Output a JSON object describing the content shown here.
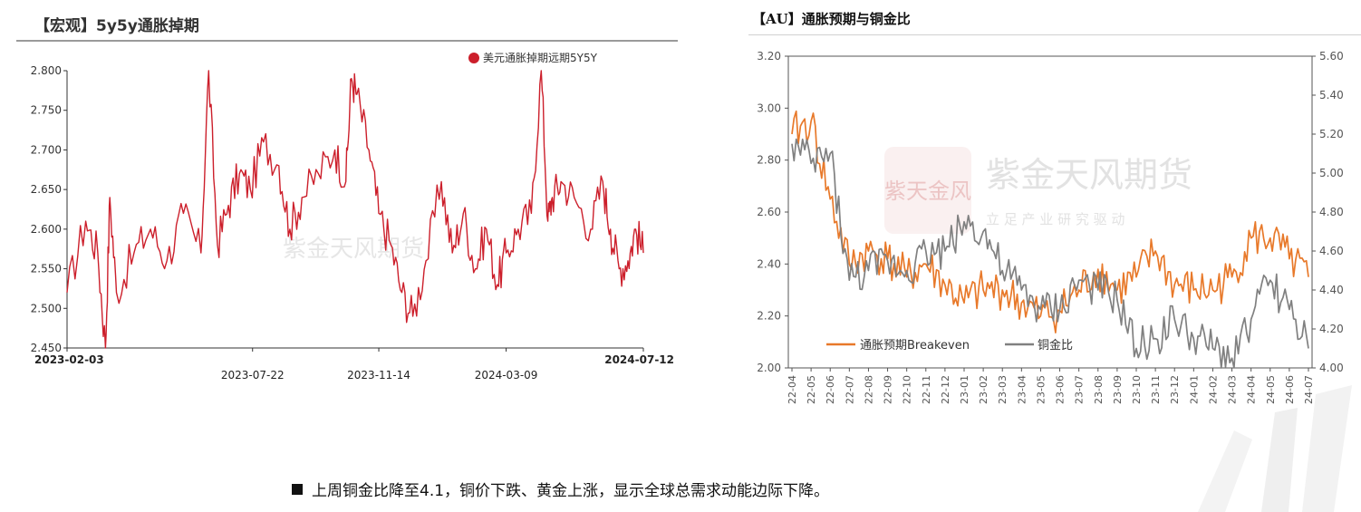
{
  "left": {
    "title": "【宏观】5y5y通胀掉期",
    "watermark": "紫金天风期货",
    "legend": "美元通胀掉期远期5Y5Y",
    "series_color": "#cc1f2b"
  },
  "right": {
    "title": "【AU】通胀预期与铜金比",
    "watermark": "紫金天风期货",
    "watermark_sub": "立 足 产 业   研 究 驱 动",
    "watermark_seal": "紫天金风",
    "legend_a": "通胀预期Breakeven",
    "legend_b": "铜金比",
    "color_a": "#e8792a",
    "color_b": "#808080"
  },
  "footer": {
    "text": "上周铜金比降至4.1，铜价下跌、黄金上涨，显示全球总需求动能边际下降。"
  },
  "chart_data": [
    {
      "type": "line",
      "title": "【宏观】5y5y通胀掉期",
      "xlabel": "",
      "ylabel": "",
      "x_range": [
        "2023-02-03",
        "2024-07-12"
      ],
      "x_ticks": [
        "2023-02-03",
        "2023-07-22",
        "2023-11-14",
        "2024-03-09",
        "2024-07-12"
      ],
      "ylim": [
        2.45,
        2.8
      ],
      "y_ticks": [
        "2.450",
        "2.500",
        "2.550",
        "2.600",
        "2.650",
        "2.700",
        "2.750",
        "2.800"
      ],
      "grid": false,
      "legend_position": "top-right",
      "series": [
        {
          "name": "美元通胀掉期远期5Y5Y",
          "x": [
            "2023-02-03",
            "2023-02-20",
            "2023-03-03",
            "2023-03-10",
            "2023-03-14",
            "2023-03-20",
            "2023-04-05",
            "2023-04-20",
            "2023-05-05",
            "2023-05-20",
            "2023-06-05",
            "2023-06-12",
            "2023-06-20",
            "2023-06-30",
            "2023-07-10",
            "2023-07-20",
            "2023-08-01",
            "2023-08-15",
            "2023-08-25",
            "2023-09-05",
            "2023-09-20",
            "2023-10-05",
            "2023-10-15",
            "2023-10-20",
            "2023-10-25",
            "2023-11-05",
            "2023-11-14",
            "2023-11-25",
            "2023-12-05",
            "2023-12-15",
            "2023-12-27",
            "2024-01-10",
            "2024-01-20",
            "2024-01-30",
            "2024-02-10",
            "2024-02-20",
            "2024-03-01",
            "2024-03-09",
            "2024-03-20",
            "2024-04-01",
            "2024-04-10",
            "2024-04-16",
            "2024-04-20",
            "2024-04-28",
            "2024-05-10",
            "2024-05-25",
            "2024-06-05",
            "2024-06-12",
            "2024-06-20",
            "2024-06-28",
            "2024-07-05",
            "2024-07-12"
          ],
          "values": [
            2.52,
            2.61,
            2.57,
            2.45,
            2.64,
            2.52,
            2.57,
            2.6,
            2.56,
            2.62,
            2.57,
            2.8,
            2.58,
            2.63,
            2.67,
            2.65,
            2.71,
            2.68,
            2.6,
            2.64,
            2.67,
            2.7,
            2.66,
            2.79,
            2.77,
            2.7,
            2.62,
            2.58,
            2.52,
            2.49,
            2.56,
            2.66,
            2.57,
            2.62,
            2.55,
            2.6,
            2.53,
            2.57,
            2.6,
            2.62,
            2.8,
            2.61,
            2.64,
            2.66,
            2.64,
            2.6,
            2.66,
            2.6,
            2.55,
            2.56,
            2.6,
            2.57
          ]
        }
      ]
    },
    {
      "type": "line",
      "title": "【AU】通胀预期与铜金比",
      "xlabel": "",
      "ylabel": "",
      "x_ticks": [
        "22-04",
        "22-05",
        "22-06",
        "22-07",
        "22-08",
        "22-09",
        "22-10",
        "22-11",
        "22-12",
        "23-01",
        "23-02",
        "23-03",
        "23-04",
        "23-05",
        "23-06",
        "23-07",
        "23-08",
        "23-09",
        "23-10",
        "23-11",
        "23-12",
        "24-01",
        "24-02",
        "24-03",
        "24-04",
        "24-05",
        "24-06",
        "24-07"
      ],
      "ylim_left": [
        2.0,
        3.2
      ],
      "y_ticks_left": [
        "2.00",
        "2.20",
        "2.40",
        "2.60",
        "2.80",
        "3.00",
        "3.20"
      ],
      "ylim_right": [
        4.0,
        5.6
      ],
      "y_ticks_right": [
        "4.00",
        "4.20",
        "4.40",
        "4.60",
        "4.80",
        "5.00",
        "5.20",
        "5.40",
        "5.60"
      ],
      "grid": false,
      "legend_position": "bottom-left",
      "series": [
        {
          "name": "通胀预期Breakeven",
          "axis": "left",
          "x": [
            "22-04",
            "22-05",
            "22-06",
            "22-07",
            "22-08",
            "22-09",
            "22-10",
            "22-11",
            "22-12",
            "23-01",
            "23-02",
            "23-03",
            "23-04",
            "23-05",
            "23-06",
            "23-07",
            "23-08",
            "23-09",
            "23-10",
            "23-11",
            "23-12",
            "24-01",
            "24-02",
            "24-03",
            "24-04",
            "24-05",
            "24-06",
            "24-07"
          ],
          "values": [
            2.9,
            2.95,
            2.65,
            2.4,
            2.45,
            2.42,
            2.35,
            2.4,
            2.32,
            2.25,
            2.3,
            2.3,
            2.25,
            2.2,
            2.22,
            2.3,
            2.38,
            2.3,
            2.35,
            2.45,
            2.32,
            2.3,
            2.3,
            2.35,
            2.5,
            2.5,
            2.42,
            2.35
          ]
        },
        {
          "name": "铜金比",
          "axis": "right",
          "x": [
            "22-04",
            "22-05",
            "22-06",
            "22-07",
            "22-08",
            "22-09",
            "22-10",
            "22-11",
            "22-12",
            "23-01",
            "23-02",
            "23-03",
            "23-04",
            "23-05",
            "23-06",
            "23-07",
            "23-08",
            "23-09",
            "23-10",
            "23-11",
            "23-12",
            "24-01",
            "24-02",
            "24-03",
            "24-04",
            "24-05",
            "24-06",
            "24-07"
          ],
          "values": [
            5.15,
            5.05,
            5.1,
            4.45,
            4.5,
            4.55,
            4.5,
            4.6,
            4.6,
            4.75,
            4.7,
            4.5,
            4.4,
            4.3,
            4.3,
            4.45,
            4.4,
            4.35,
            4.1,
            4.15,
            4.25,
            4.15,
            4.1,
            4.05,
            4.25,
            4.45,
            4.3,
            4.1
          ]
        }
      ]
    }
  ]
}
